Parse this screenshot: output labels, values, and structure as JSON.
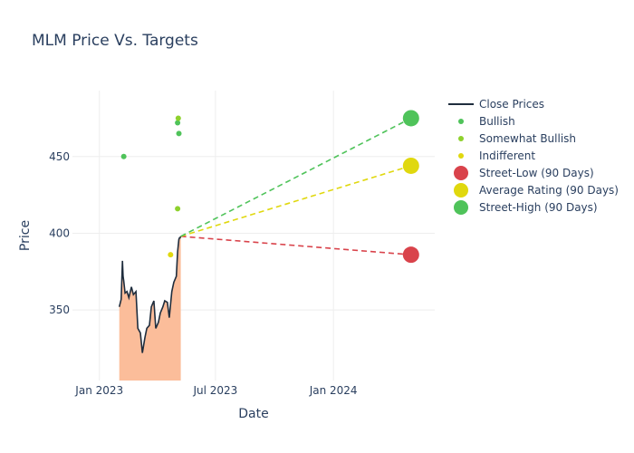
{
  "chart_data": {
    "type": "line",
    "title": "MLM Price Vs. Targets",
    "xlabel": "Date",
    "ylabel": "Price",
    "xlim": [
      "2022-11-20",
      "2024-06-07"
    ],
    "ylim": [
      304,
      493
    ],
    "x_ticks": [
      {
        "date": "2023-01-01",
        "label": "Jan 2023"
      },
      {
        "date": "2023-07-01",
        "label": "Jul 2023"
      },
      {
        "date": "2024-01-01",
        "label": "Jan 2024"
      }
    ],
    "y_ticks": [
      350,
      400,
      450
    ],
    "grid": true,
    "legend_position": "right",
    "close_prices": {
      "name": "Close Prices",
      "color": "#1f2d3d",
      "fill_color": "#fbbd9a",
      "x": [
        "2023-02-01",
        "2023-02-04",
        "2023-02-06",
        "2023-02-07",
        "2023-02-08",
        "2023-02-10",
        "2023-02-13",
        "2023-02-16",
        "2023-02-20",
        "2023-02-23",
        "2023-02-27",
        "2023-03-02",
        "2023-03-06",
        "2023-03-09",
        "2023-03-13",
        "2023-03-16",
        "2023-03-20",
        "2023-03-23",
        "2023-03-27",
        "2023-03-30",
        "2023-04-03",
        "2023-04-06",
        "2023-04-10",
        "2023-04-13",
        "2023-04-17",
        "2023-04-20",
        "2023-04-24",
        "2023-04-27",
        "2023-05-01",
        "2023-05-03",
        "2023-05-05",
        "2023-05-06",
        "2023-05-07",
        "2023-05-08"
      ],
      "y": [
        352,
        357,
        382,
        372,
        369,
        361,
        362,
        358,
        365,
        360,
        362,
        338,
        335,
        322,
        332,
        338,
        340,
        352,
        356,
        338,
        342,
        348,
        352,
        356,
        355,
        345,
        362,
        368,
        372,
        388,
        396,
        397,
        397,
        398
      ]
    },
    "series": [
      {
        "name": "Bullish",
        "color": "#4fc35a",
        "points": [
          {
            "x": "2023-02-08",
            "y": 450
          },
          {
            "x": "2023-05-03",
            "y": 472
          },
          {
            "x": "2023-05-05",
            "y": 465
          }
        ]
      },
      {
        "name": "Somewhat Bullish",
        "color": "#8ed12d",
        "points": [
          {
            "x": "2023-05-03",
            "y": 416
          },
          {
            "x": "2023-05-04",
            "y": 475
          }
        ]
      },
      {
        "name": "Indifferent",
        "color": "#e0d80e",
        "points": [
          {
            "x": "2023-04-22",
            "y": 386
          }
        ]
      }
    ],
    "targets": [
      {
        "name": "Street-Low (90 Days)",
        "color": "#d9434b",
        "x": "2024-05-01",
        "y": 386
      },
      {
        "name": "Average Rating (90 Days)",
        "color": "#e0d80e",
        "x": "2024-05-01",
        "y": 444
      },
      {
        "name": "Street-High (90 Days)",
        "color": "#4fc35a",
        "x": "2024-05-01",
        "y": 475
      }
    ]
  }
}
